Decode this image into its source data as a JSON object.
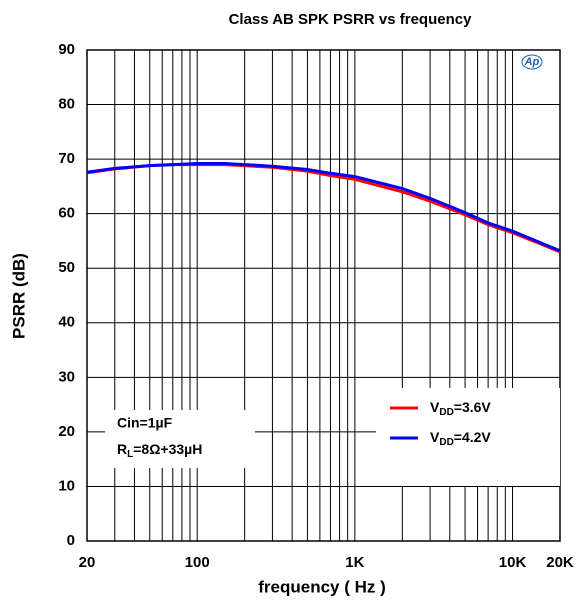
{
  "chart_data": {
    "type": "line",
    "title": "Class AB SPK PSRR vs frequency",
    "xlabel": "frequency ( Hz )",
    "ylabel": "PSRR (dB)",
    "logo": "Ap",
    "annotations": [
      "Cin=1µF",
      "RL=8Ω+33µH"
    ],
    "x": [
      20,
      30,
      50,
      70,
      100,
      150,
      200,
      300,
      500,
      700,
      1000,
      2000,
      3000,
      5000,
      7000,
      10000,
      15000,
      20000
    ],
    "series": [
      {
        "name": "VDD=3.6V",
        "color": "#ff0000",
        "values": [
          67.5,
          68.2,
          68.8,
          69.0,
          69.0,
          69.0,
          68.8,
          68.5,
          67.8,
          67.0,
          66.3,
          64.0,
          62.3,
          59.8,
          58.0,
          56.5,
          54.5,
          53.0
        ]
      },
      {
        "name": "VDD=4.2V",
        "color": "#0000ff",
        "values": [
          67.6,
          68.3,
          68.8,
          69.0,
          69.2,
          69.2,
          69.0,
          68.7,
          68.1,
          67.4,
          66.8,
          64.6,
          62.8,
          60.2,
          58.3,
          56.8,
          54.7,
          53.2
        ]
      }
    ],
    "xscale": "log",
    "xlim": [
      20,
      20000
    ],
    "xticks": [
      20,
      100,
      {
        "value": 1000,
        "label": "1K"
      },
      {
        "value": 10000,
        "label": "10K"
      },
      {
        "value": 20000,
        "label": "20K"
      }
    ],
    "xminor": [
      30,
      40,
      50,
      60,
      70,
      80,
      90,
      200,
      300,
      400,
      500,
      600,
      700,
      800,
      900,
      2000,
      3000,
      4000,
      5000,
      6000,
      7000,
      8000,
      9000
    ],
    "ylim": [
      0,
      90
    ],
    "yticks": [
      0,
      10,
      20,
      30,
      40,
      50,
      60,
      70,
      80,
      90
    ],
    "grid": true
  }
}
